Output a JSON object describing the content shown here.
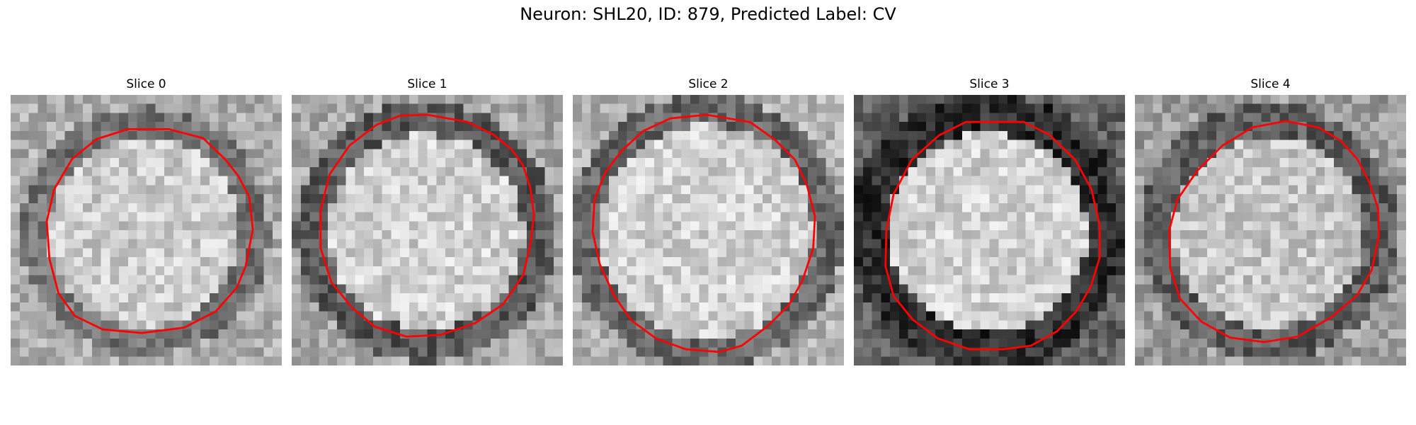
{
  "figure": {
    "title": "Neuron: SHL20, ID: 879, Predicted Label: CV"
  },
  "panels": [
    {
      "title": "Slice 0",
      "seed": 11,
      "bg": 0.68,
      "ring_dark": 0.45,
      "center_bright": 0.8,
      "ring_radius": 12.2,
      "ring_width": 1.6,
      "contour": [
        [
          17.5,
          3.8
        ],
        [
          21.3,
          4.8
        ],
        [
          23.8,
          7.2
        ],
        [
          25.2,
          9.0
        ],
        [
          26.4,
          11.3
        ],
        [
          26.8,
          14.9
        ],
        [
          26.0,
          19.0
        ],
        [
          25.0,
          21.4
        ],
        [
          22.7,
          24.0
        ],
        [
          19.2,
          25.8
        ],
        [
          14.5,
          26.4
        ],
        [
          10.2,
          26.0
        ],
        [
          7.1,
          24.5
        ],
        [
          5.3,
          22.0
        ],
        [
          4.3,
          18.2
        ],
        [
          4.0,
          14.0
        ],
        [
          4.8,
          10.5
        ],
        [
          6.8,
          7.1
        ],
        [
          9.5,
          4.9
        ],
        [
          13.0,
          3.8
        ]
      ]
    },
    {
      "title": "Slice 1",
      "seed": 23,
      "bg": 0.66,
      "ring_dark": 0.35,
      "center_bright": 0.82,
      "ring_radius": 12.6,
      "ring_width": 1.8,
      "contour": [
        [
          15.0,
          2.2
        ],
        [
          19.5,
          3.0
        ],
        [
          22.3,
          4.4
        ],
        [
          24.3,
          6.0
        ],
        [
          25.6,
          7.8
        ],
        [
          26.4,
          10.3
        ],
        [
          26.8,
          13.3
        ],
        [
          26.4,
          16.6
        ],
        [
          25.6,
          20.0
        ],
        [
          23.4,
          23.2
        ],
        [
          20.3,
          25.3
        ],
        [
          16.5,
          26.6
        ],
        [
          12.7,
          26.8
        ],
        [
          9.2,
          25.7
        ],
        [
          6.7,
          23.6
        ],
        [
          4.4,
          20.8
        ],
        [
          3.2,
          17.0
        ],
        [
          3.2,
          12.8
        ],
        [
          4.2,
          8.8
        ],
        [
          6.4,
          5.6
        ],
        [
          9.4,
          3.3
        ],
        [
          12.0,
          2.3
        ]
      ]
    },
    {
      "title": "Slice 2",
      "seed": 37,
      "bg": 0.7,
      "ring_dark": 0.4,
      "center_bright": 0.82,
      "ring_radius": 13.5,
      "ring_width": 1.7,
      "contour": [
        [
          14.8,
          2.2
        ],
        [
          19.6,
          3.0
        ],
        [
          22.4,
          5.0
        ],
        [
          24.6,
          7.2
        ],
        [
          25.9,
          10.0
        ],
        [
          26.8,
          13.5
        ],
        [
          26.6,
          17.0
        ],
        [
          25.4,
          20.6
        ],
        [
          23.9,
          23.3
        ],
        [
          21.6,
          25.6
        ],
        [
          18.7,
          27.8
        ],
        [
          16.2,
          28.5
        ],
        [
          12.5,
          28.2
        ],
        [
          9.2,
          27.0
        ],
        [
          6.5,
          25.0
        ],
        [
          4.6,
          22.3
        ],
        [
          3.0,
          18.8
        ],
        [
          2.2,
          15.2
        ],
        [
          2.4,
          11.6
        ],
        [
          3.6,
          8.6
        ],
        [
          5.4,
          6.2
        ],
        [
          7.8,
          4.0
        ],
        [
          10.8,
          2.6
        ]
      ]
    },
    {
      "title": "Slice 3",
      "seed": 51,
      "bg": 0.38,
      "ring_dark": 0.18,
      "center_bright": 0.82,
      "ring_radius": 13.2,
      "ring_width": 2.2,
      "contour": [
        [
          15.0,
          3.0
        ],
        [
          18.8,
          3.0
        ],
        [
          21.6,
          4.4
        ],
        [
          24.5,
          7.2
        ],
        [
          26.3,
          10.5
        ],
        [
          27.2,
          14.5
        ],
        [
          27.2,
          18.0
        ],
        [
          26.2,
          21.3
        ],
        [
          24.6,
          24.0
        ],
        [
          22.5,
          26.2
        ],
        [
          19.6,
          27.8
        ],
        [
          16.5,
          28.2
        ],
        [
          12.8,
          28.2
        ],
        [
          9.3,
          27.0
        ],
        [
          6.5,
          24.9
        ],
        [
          4.4,
          22.3
        ],
        [
          3.5,
          19.0
        ],
        [
          3.6,
          15.0
        ],
        [
          4.4,
          11.0
        ],
        [
          6.4,
          7.2
        ],
        [
          9.4,
          4.5
        ],
        [
          12.4,
          3.0
        ]
      ]
    },
    {
      "title": "Slice 4",
      "seed": 67,
      "bg": 0.62,
      "ring_dark": 0.36,
      "center_bright": 0.78,
      "ring_radius": 12.4,
      "ring_width": 1.8,
      "contour": [
        [
          16.7,
          2.9
        ],
        [
          20.3,
          3.6
        ],
        [
          22.8,
          5.1
        ],
        [
          24.6,
          7.1
        ],
        [
          25.9,
          9.6
        ],
        [
          26.9,
          12.6
        ],
        [
          27.0,
          15.6
        ],
        [
          26.2,
          19.4
        ],
        [
          24.6,
          22.2
        ],
        [
          21.8,
          24.6
        ],
        [
          18.0,
          26.8
        ],
        [
          14.3,
          27.4
        ],
        [
          10.5,
          26.9
        ],
        [
          7.3,
          25.1
        ],
        [
          5.0,
          22.6
        ],
        [
          3.9,
          19.2
        ],
        [
          3.8,
          15.0
        ],
        [
          4.7,
          11.6
        ],
        [
          6.9,
          8.4
        ],
        [
          9.7,
          5.6
        ],
        [
          13.0,
          3.6
        ]
      ]
    }
  ]
}
